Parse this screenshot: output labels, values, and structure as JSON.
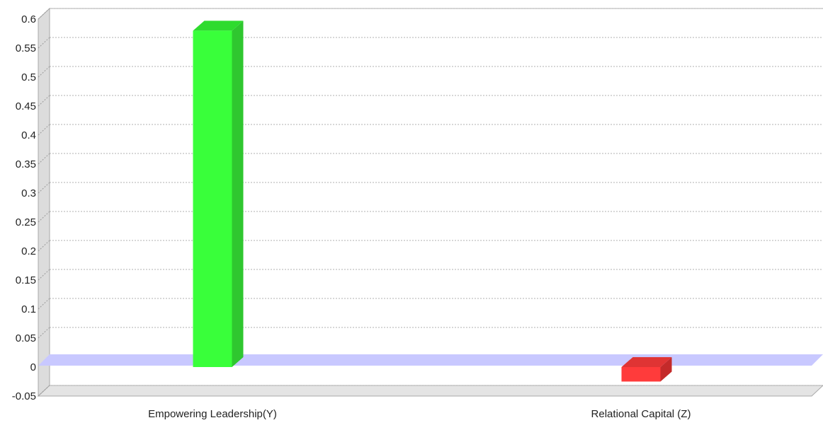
{
  "chart_data": {
    "type": "bar",
    "categories": [
      "Empowering Leadership(Y)",
      "Relational Capital (Z)"
    ],
    "values": [
      0.58,
      -0.025
    ],
    "ylim": [
      -0.05,
      0.6
    ],
    "yticks": [
      "-0.05",
      "0",
      "0.05",
      "0.1",
      "0.15",
      "0.2",
      "0.25",
      "0.3",
      "0.35",
      "0.4",
      "0.45",
      "0.5",
      "0.55",
      "0.6"
    ],
    "title": "",
    "xlabel": "",
    "ylabel": "",
    "grid": true,
    "legend": "none",
    "style": "3d",
    "colors": {
      "bars": [
        "#39ff3a",
        "#ff3b3b"
      ],
      "bar_sides": [
        "#2fc72f",
        "#c42a2a"
      ],
      "bar_tops": [
        "#2edb2e",
        "#e03434"
      ],
      "zero_plane": "#c8c8ff",
      "wall": "#dcdcdc",
      "grid": "#b0b0b0"
    }
  }
}
